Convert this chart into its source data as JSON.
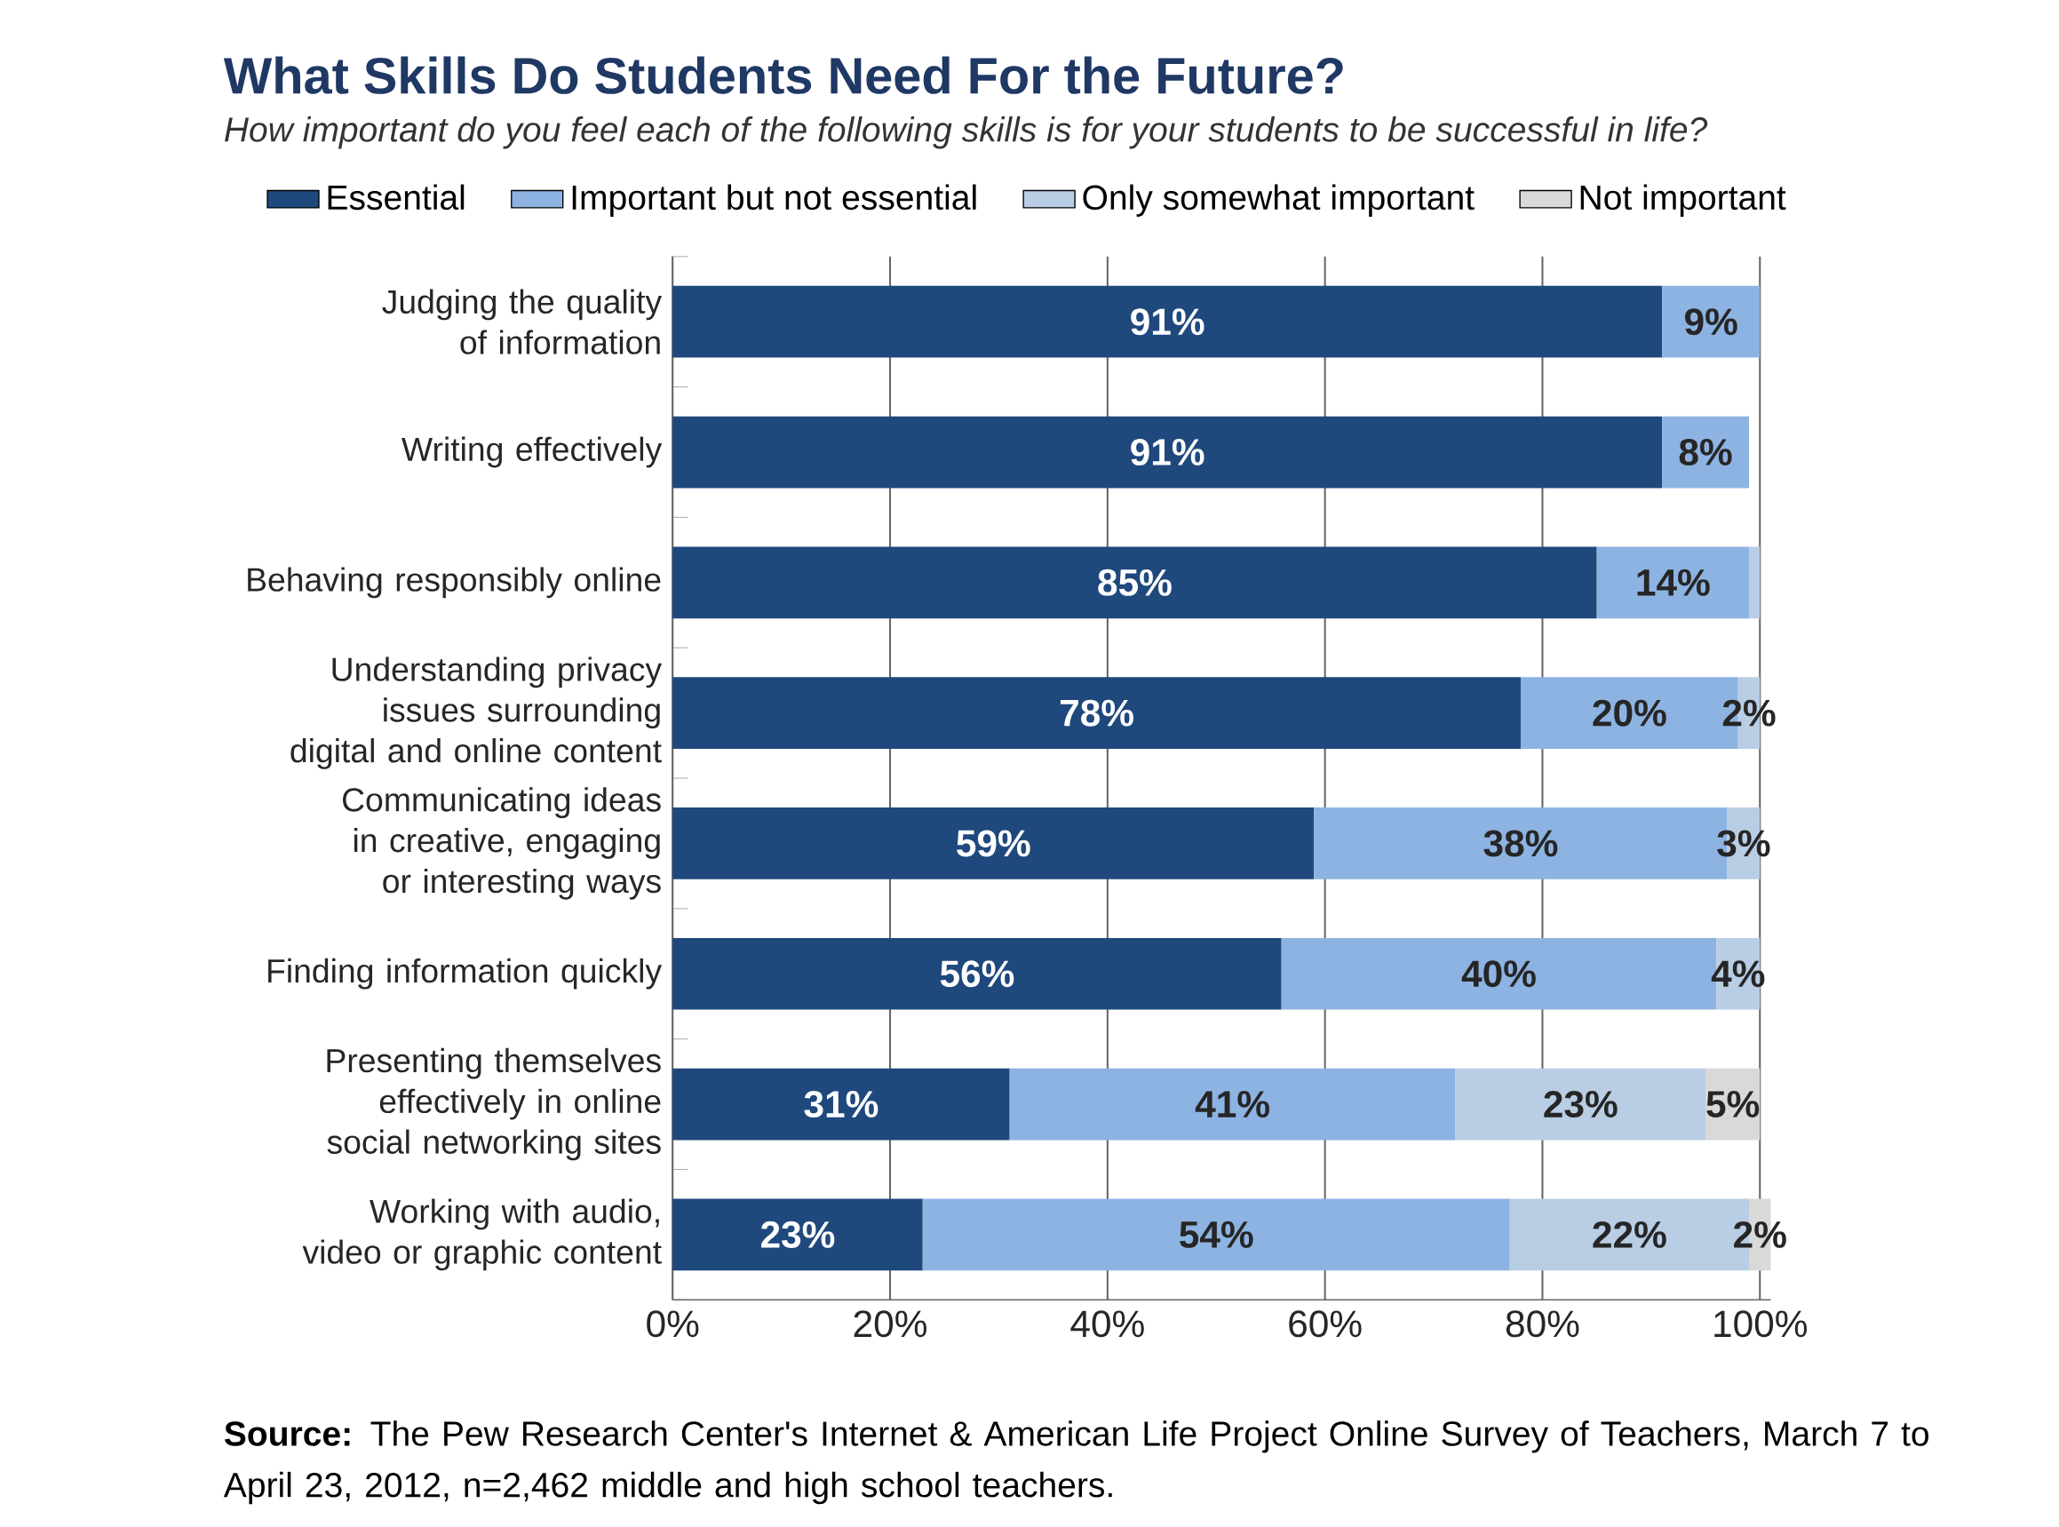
{
  "chart_data": {
    "type": "bar",
    "orientation": "horizontal",
    "stacked": true,
    "title": "What Skills Do Students Need For the Future?",
    "subtitle": "How important do you feel each of the following skills is for your students to be successful in life?",
    "categories": [
      "Judging the quality of information",
      "Writing effectively",
      "Behaving responsibly online",
      "Understanding privacy issues surrounding digital and online content",
      "Communicating ideas in creative, engaging or interesting ways",
      "Finding information quickly",
      "Presenting themselves effectively in online social networking sites",
      "Working with audio, video or graphic content"
    ],
    "series": [
      {
        "name": "Essential",
        "color": "#1f497d",
        "values": [
          91,
          91,
          85,
          78,
          59,
          56,
          31,
          23
        ],
        "value_labels": [
          "91%",
          "91%",
          "85%",
          "78%",
          "59%",
          "56%",
          "31%",
          "23%"
        ]
      },
      {
        "name": "Important but not essential",
        "color": "#8db3e2",
        "values": [
          9,
          8,
          14,
          20,
          38,
          40,
          41,
          54
        ],
        "value_labels": [
          "9%",
          "8%",
          "14%",
          "20%",
          "38%",
          "40%",
          "41%",
          "54%"
        ]
      },
      {
        "name": "Only somewhat important",
        "color": "#b9cde5",
        "values": [
          null,
          null,
          1,
          2,
          3,
          4,
          23,
          22
        ],
        "value_labels": [
          null,
          null,
          null,
          "2%",
          "3%",
          "4%",
          "23%",
          "22%"
        ]
      },
      {
        "name": "Not important",
        "color": "#d9d9d9",
        "values": [
          null,
          null,
          null,
          null,
          null,
          null,
          5,
          2
        ],
        "value_labels": [
          null,
          null,
          null,
          null,
          null,
          null,
          "5%",
          "2%"
        ]
      }
    ],
    "xlim": [
      0,
      101
    ],
    "xticks": [
      {
        "value": 0,
        "label": "0%"
      },
      {
        "value": 20,
        "label": "20%"
      },
      {
        "value": 40,
        "label": "40%"
      },
      {
        "value": 60,
        "label": "60%"
      },
      {
        "value": 80,
        "label": "80%"
      },
      {
        "value": 100,
        "label": "100%"
      }
    ],
    "grid": "x",
    "legend": "top",
    "annotations": [
      "**Source:** The Pew Research Center's Internet & American Life Project Online Survey of Teachers, March 7 to April 23, 2012, n=2,462 middle and high school teachers."
    ]
  }
}
